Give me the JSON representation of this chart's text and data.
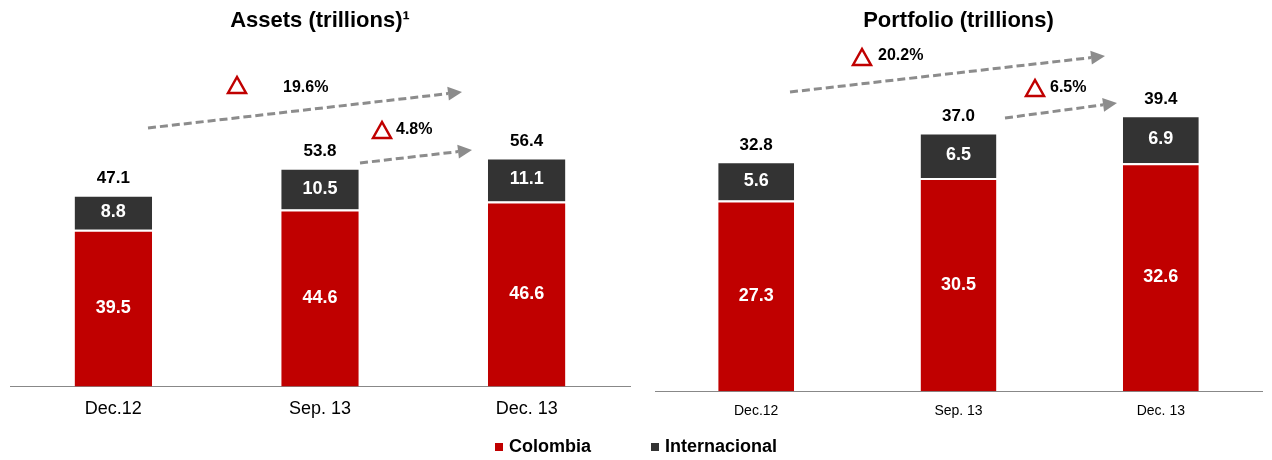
{
  "chart_data": [
    {
      "type": "bar",
      "title": "Assets (trillions)¹",
      "categories": [
        "Dec.12",
        "Sep. 13",
        "Dec. 13"
      ],
      "stacked": true,
      "data_labels": true,
      "legend": "bottom",
      "series": [
        {
          "name": "Colombia",
          "color": "#c00000",
          "values": [
            39.5,
            44.6,
            46.6
          ]
        },
        {
          "name": "Internacional",
          "color": "#333333",
          "values": [
            8.8,
            10.5,
            11.1
          ]
        }
      ],
      "annotations": [
        "19.6%",
        "4.8%",
        "47.1",
        "53.8",
        "56.4"
      ]
    },
    {
      "type": "bar",
      "title": "Portfolio (trillions)",
      "categories": [
        "Dec.12",
        "Sep. 13",
        "Dec. 13"
      ],
      "stacked": true,
      "data_labels": true,
      "series": [
        {
          "color": "#c00000",
          "values": [
            27.3,
            30.5,
            32.6
          ]
        },
        {
          "color": "#333333",
          "values": [
            5.6,
            6.5,
            6.9
          ]
        }
      ],
      "totals": [
        "32.8",
        "37.0",
        "39.4"
      ],
      "annotations": [
        "20.2%",
        "6.5%"
      ]
    }
  ]
}
